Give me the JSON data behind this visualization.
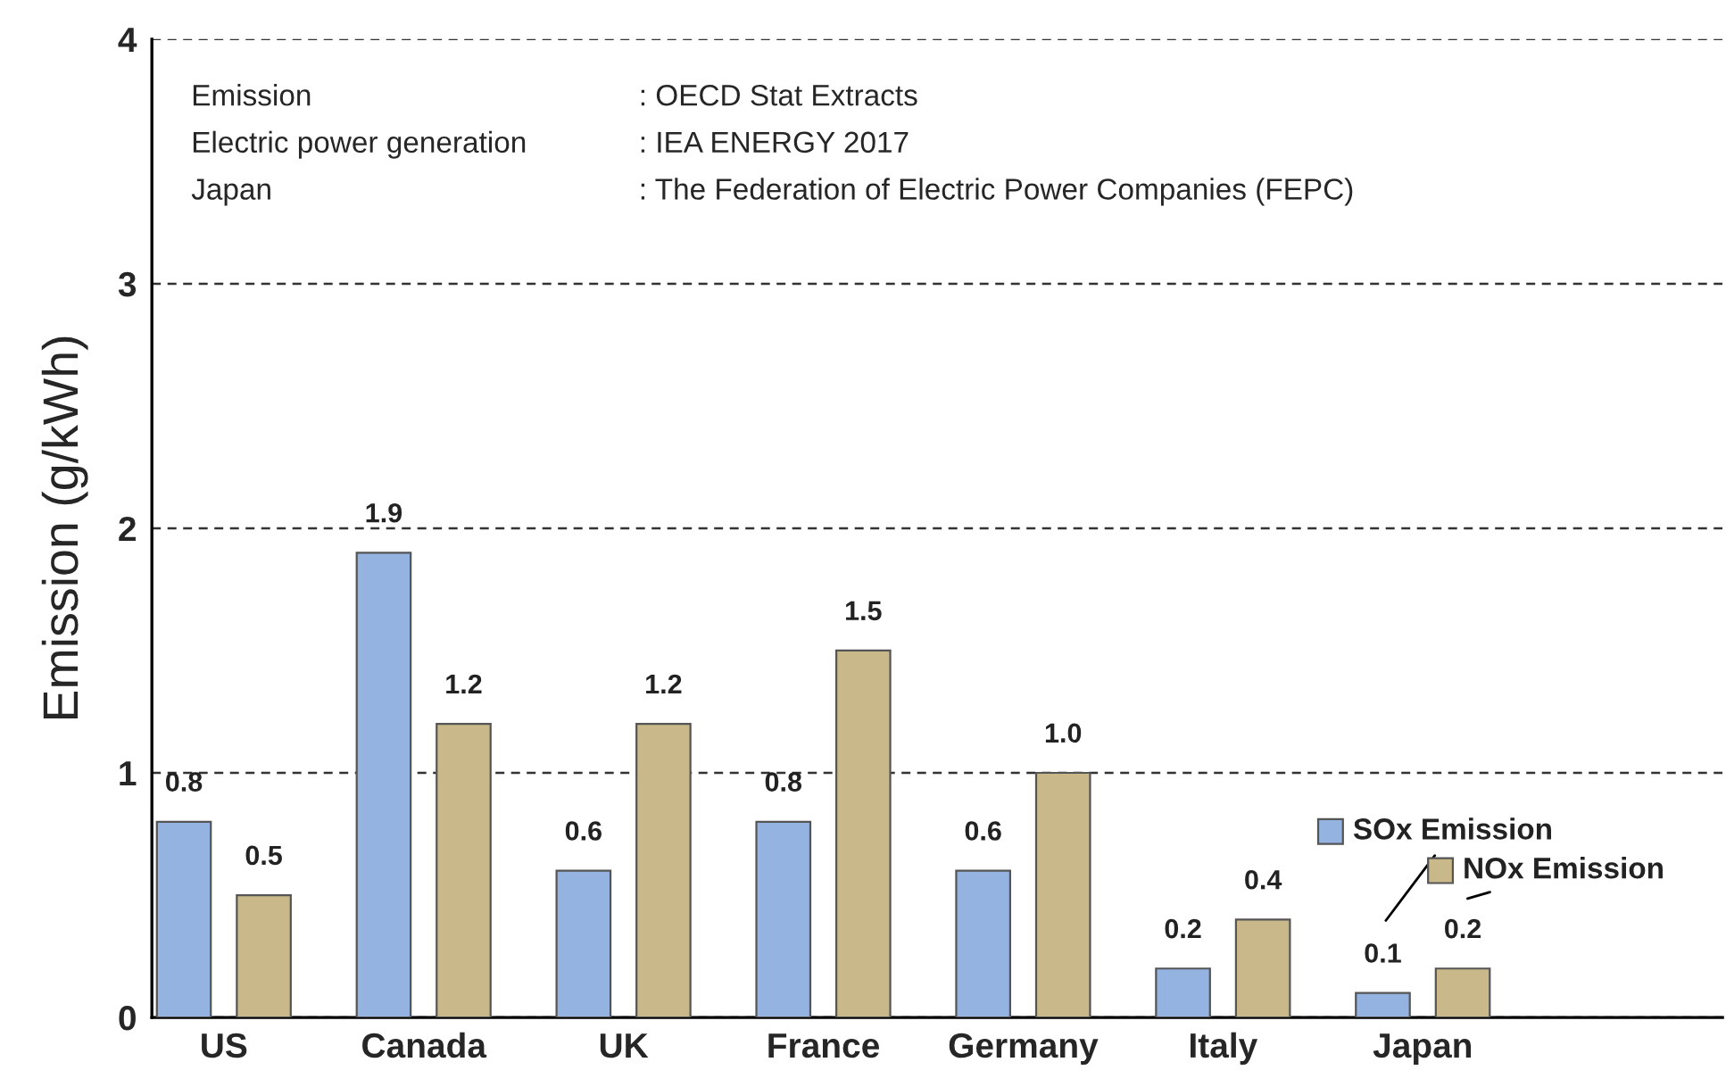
{
  "chart_data": {
    "type": "bar",
    "ylabel": "Emission (g/kWh)",
    "categories": [
      "US",
      "Canada",
      "UK",
      "France",
      "Germany",
      "Italy",
      "Japan"
    ],
    "series": [
      {
        "name": "SOx Emission",
        "color": "#95b3e0",
        "values": [
          0.8,
          1.9,
          0.6,
          0.8,
          0.6,
          0.2,
          0.1
        ],
        "value_labels": [
          "0.8",
          "1.9",
          "0.6",
          "0.8",
          "0.6",
          "0.2",
          "0.1"
        ]
      },
      {
        "name": "NOx Emission",
        "color": "#c9b98a",
        "values": [
          0.5,
          1.2,
          1.2,
          1.5,
          1.0,
          0.4,
          0.2
        ],
        "value_labels": [
          "0.5",
          "1.2",
          "1.2",
          "1.5",
          "1.0",
          "0.4",
          "0.2"
        ]
      }
    ],
    "ylim": [
      0,
      4
    ],
    "yticks": [
      0,
      1,
      2,
      3,
      4
    ],
    "grid": "y",
    "data_labels": true,
    "legend": "bottom right",
    "annotations": [
      "Emission",
      ": OECD Stat Extracts",
      "Electric power generation",
      ": IEA ENERGY 2017",
      "Japan",
      ": The Federation of Electric Power Companies (FEPC)"
    ]
  }
}
